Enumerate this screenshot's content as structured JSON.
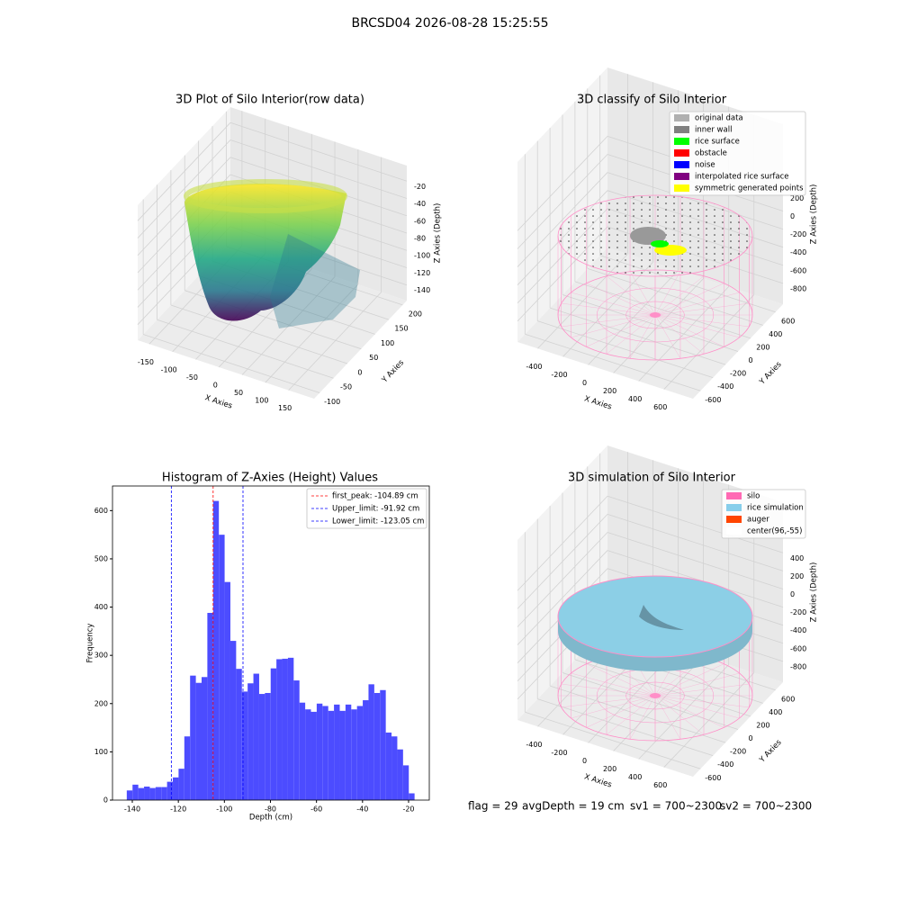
{
  "suptitle": "BRCSD04 2026-08-28 15:25:55",
  "chart_data": [
    {
      "type": "scatter3d",
      "title": "3D Plot of Silo Interior(row data)",
      "xlabel": "X Axies",
      "ylabel": "Y Axies",
      "zlabel": "Z Axies (Depth)",
      "xlim": [
        -175,
        205
      ],
      "ylim": [
        -120,
        215
      ],
      "zlim": [
        -158,
        -2
      ],
      "xticks": [
        -150,
        -100,
        -50,
        0,
        50,
        100,
        150
      ],
      "yticks": [
        -100,
        -50,
        0,
        50,
        100,
        150,
        200
      ],
      "zticks": [
        -140,
        -120,
        -100,
        -80,
        -60,
        -40,
        -20
      ]
    },
    {
      "type": "scatter3d",
      "title": "3D classify of Silo Interior",
      "xlabel": "X Axies",
      "ylabel": "Y Axies",
      "zlabel": "Z Axies (Depth)",
      "xlim": [
        -560,
        830
      ],
      "ylim": [
        -720,
        720
      ],
      "zlim": [
        -1030,
        960
      ],
      "xticks": [
        -400,
        -200,
        0,
        200,
        400,
        600
      ],
      "yticks": [
        -600,
        -400,
        -200,
        0,
        200,
        400,
        600
      ],
      "zticks": [
        -800,
        -600,
        -400,
        -200,
        0,
        200
      ],
      "legend": [
        {
          "name": "original data",
          "color": "#b0b0b0"
        },
        {
          "name": "inner wall",
          "color": "#808080"
        },
        {
          "name": "rice surface",
          "color": "#00ff00"
        },
        {
          "name": "obstacle",
          "color": "#ff0000"
        },
        {
          "name": "noise",
          "color": "#0000ff"
        },
        {
          "name": "interpolated rice surface",
          "color": "#800080"
        },
        {
          "name": "symmetric generated points",
          "color": "#ffff00"
        }
      ]
    },
    {
      "type": "histogram",
      "title": "Histogram of Z-Axies (Height) Values",
      "xlabel": "Depth (cm)",
      "ylabel": "Frequency",
      "color": "#4c4cff",
      "bins": [
        -142.4,
        -139.9,
        -137.4,
        -134.9,
        -132.4,
        -129.9,
        -127.4,
        -124.9,
        -122.4,
        -119.9,
        -117.4,
        -114.9,
        -112.4,
        -109.9,
        -107.4,
        -104.9,
        -102.4,
        -99.9,
        -97.4,
        -94.9,
        -92.4,
        -89.9,
        -87.4,
        -84.9,
        -82.4,
        -79.9,
        -77.4,
        -74.9,
        -72.4,
        -69.9,
        -67.4,
        -64.9,
        -62.4,
        -59.9,
        -57.4,
        -54.9,
        -52.4,
        -49.9,
        -47.4,
        -44.9,
        -42.4,
        -39.9,
        -37.4,
        -34.9,
        -32.4,
        -29.9,
        -27.4,
        -24.9,
        -22.4,
        -19.9,
        -17.4
      ],
      "values": [
        20,
        32,
        25,
        28,
        25,
        27,
        27,
        38,
        47,
        65,
        132,
        258,
        243,
        255,
        388,
        620,
        550,
        452,
        330,
        272,
        225,
        242,
        262,
        220,
        222,
        273,
        292,
        293,
        295,
        248,
        202,
        188,
        183,
        200,
        195,
        185,
        198,
        185,
        198,
        188,
        195,
        207,
        240,
        222,
        228,
        140,
        132,
        105,
        72,
        14
      ],
      "xlim": [
        -148.6,
        -11
      ],
      "ylim": [
        0,
        651
      ],
      "xticks": [
        -140,
        -120,
        -100,
        -80,
        -60,
        -40,
        -20
      ],
      "yticks": [
        0,
        100,
        200,
        300,
        400,
        500,
        600
      ],
      "lines": [
        {
          "name": "first_peak: -104.89 cm",
          "value": -104.89,
          "color": "#ff0000"
        },
        {
          "name": "Upper_limit: -91.92 cm",
          "value": -91.92,
          "color": "#0000ff"
        },
        {
          "name": "Lower_limit: -123.05 cm",
          "value": -123.05,
          "color": "#0000ff"
        }
      ]
    },
    {
      "type": "scatter3d",
      "title": "3D simulation of Silo Interior",
      "xlabel": "X Axies",
      "ylabel": "Y Axies",
      "zlabel": "Z Axies (Depth)",
      "xlim": [
        -560,
        830
      ],
      "ylim": [
        -720,
        720
      ],
      "zlim": [
        -1030,
        960
      ],
      "xticks": [
        -400,
        -200,
        0,
        200,
        400,
        600
      ],
      "yticks": [
        -600,
        -400,
        -200,
        0,
        200,
        400,
        600
      ],
      "zticks": [
        -800,
        -600,
        -400,
        -200,
        0,
        200,
        400
      ],
      "legend": [
        {
          "name": "silo",
          "color": "#ff69b4"
        },
        {
          "name": "rice simulation",
          "color": "#87ceeb"
        },
        {
          "name": "auger",
          "color": "#ff4500"
        },
        {
          "name": "center(96,-55)",
          "color": "#ffffff"
        }
      ]
    }
  ],
  "footer": [
    "flag = 29",
    "avgDepth = 19 cm",
    "sv1 = 700~2300",
    "sv2 = 700~2300"
  ]
}
